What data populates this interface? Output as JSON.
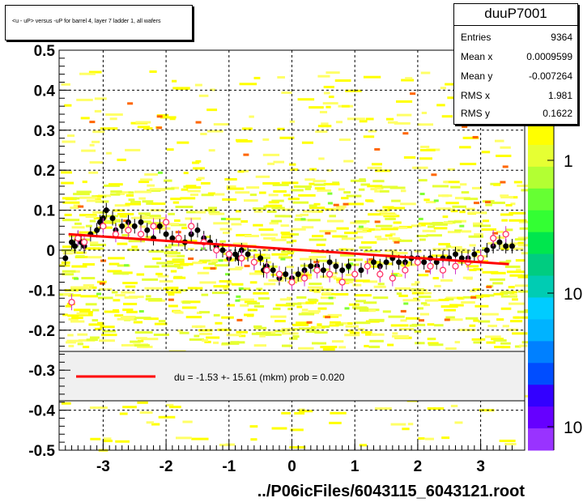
{
  "chart_data": {
    "type": "scatter",
    "title": "<u - uP>       versus  -uP for barrel 4, layer 7 ladder 1, all wafers",
    "xlabel": "../P06icFiles/6043115_6043121.root",
    "ylabel": "",
    "xlim": [
      -3.7,
      3.7
    ],
    "ylim": [
      -0.5,
      0.5
    ],
    "x_ticks": [
      -3,
      -2,
      -1,
      0,
      1,
      2,
      3
    ],
    "x_tick_labels": [
      "-3",
      "-2",
      "-1",
      "0",
      "1",
      "2",
      "3"
    ],
    "y_ticks": [
      -0.5,
      -0.4,
      -0.3,
      -0.2,
      -0.1,
      0,
      0.1,
      0.2,
      0.3,
      0.4,
      0.5
    ],
    "y_tick_labels": [
      "-0.5",
      "-0.4",
      "-0.3",
      "-0.2",
      "-0.1",
      "0",
      "0.1",
      "0.2",
      "0.3",
      "0.4",
      "0.5"
    ],
    "grid": true,
    "stats": {
      "name": "duuP7001",
      "rows": [
        {
          "label": "Entries",
          "value": "9364"
        },
        {
          "label": "Mean x",
          "value": "0.0009599"
        },
        {
          "label": "Mean y",
          "value": "-0.007264"
        },
        {
          "label": "RMS x",
          "value": "1.981"
        },
        {
          "label": "RMS y",
          "value": "0.1622"
        }
      ]
    },
    "legend": {
      "placement": "lower-center",
      "entry": "du =   -1.53 +- 15.61 (mkm) prob = 0.020",
      "line_color": "#ff0000"
    },
    "colorbar": {
      "labels": [
        "1",
        "10",
        "10"
      ],
      "colors": [
        "#ffff00",
        "#e6ff33",
        "#b3ff33",
        "#66ff33",
        "#33ff33",
        "#00e64d",
        "#00cc80",
        "#00ccb3",
        "#00ccff",
        "#00b3ff",
        "#0080ff",
        "#004dff",
        "#3300ff",
        "#6600ff",
        "#9933ff"
      ]
    },
    "series": [
      {
        "kind": "profile-black",
        "x": [
          -3.6,
          -3.5,
          -3.45,
          -3.4,
          -3.35,
          -3.3,
          -3.2,
          -3.1,
          -3.05,
          -3.0,
          -2.95,
          -2.85,
          -2.8,
          -2.7,
          -2.6,
          -2.5,
          -2.4,
          -2.3,
          -2.2,
          -2.1,
          -2.0,
          -1.9,
          -1.8,
          -1.7,
          -1.6,
          -1.5,
          -1.4,
          -1.3,
          -1.2,
          -1.1,
          -1.0,
          -0.9,
          -0.85,
          -0.8,
          -0.7,
          -0.6,
          -0.5,
          -0.45,
          -0.4,
          -0.3,
          -0.2,
          -0.1,
          0.0,
          0.1,
          0.2,
          0.3,
          0.4,
          0.5,
          0.6,
          0.7,
          0.8,
          0.9,
          1.0,
          1.1,
          1.2,
          1.3,
          1.4,
          1.5,
          1.6,
          1.7,
          1.8,
          1.9,
          2.0,
          2.1,
          2.2,
          2.3,
          2.4,
          2.5,
          2.6,
          2.7,
          2.8,
          2.9,
          3.0,
          3.1,
          3.2,
          3.3,
          3.4,
          3.5
        ],
        "y": [
          -0.02,
          0.02,
          0.01,
          0.03,
          0.02,
          0.01,
          0.04,
          0.05,
          0.07,
          0.08,
          0.1,
          0.08,
          0.05,
          0.06,
          0.07,
          0.06,
          0.07,
          0.05,
          0.03,
          0.06,
          0.04,
          0.03,
          0.03,
          0.02,
          0.04,
          0.05,
          0.03,
          0.02,
          0.01,
          0.0,
          -0.02,
          -0.01,
          -0.02,
          0.0,
          -0.01,
          -0.03,
          -0.02,
          -0.05,
          -0.04,
          -0.05,
          -0.07,
          -0.06,
          -0.07,
          -0.06,
          -0.05,
          -0.04,
          -0.04,
          -0.05,
          -0.03,
          -0.04,
          -0.05,
          -0.04,
          -0.06,
          -0.05,
          -0.04,
          -0.03,
          -0.04,
          -0.03,
          -0.02,
          -0.03,
          -0.03,
          -0.02,
          -0.02,
          -0.03,
          -0.02,
          -0.03,
          -0.02,
          -0.02,
          -0.01,
          -0.02,
          -0.02,
          -0.01,
          -0.02,
          0.0,
          0.01,
          0.02,
          0.01,
          0.01
        ]
      },
      {
        "kind": "profile-open",
        "x": [
          -3.5,
          -3.4,
          -3.3,
          -3.0,
          -2.8,
          -2.6,
          -2.4,
          -2.2,
          -2.0,
          -1.8,
          -1.6,
          -1.4,
          -1.2,
          -1.0,
          -0.8,
          -0.6,
          -0.4,
          -0.2,
          0.0,
          0.2,
          0.4,
          0.6,
          0.8,
          1.0,
          1.2,
          1.4,
          1.6,
          1.8,
          2.0,
          2.2,
          2.4,
          2.6,
          2.8,
          3.0,
          3.2,
          3.4
        ],
        "y": [
          -0.13,
          0.03,
          0.02,
          0.06,
          0.04,
          0.05,
          0.04,
          0.06,
          0.07,
          0.03,
          0.06,
          0.02,
          0.0,
          -0.01,
          -0.02,
          -0.03,
          -0.05,
          -0.06,
          -0.08,
          -0.07,
          -0.05,
          -0.06,
          -0.08,
          -0.06,
          -0.04,
          -0.06,
          -0.07,
          -0.05,
          -0.03,
          -0.04,
          -0.05,
          -0.04,
          -0.03,
          -0.02,
          0.03,
          0.04
        ]
      },
      {
        "kind": "fit",
        "x": [
          -3.55,
          3.45
        ],
        "y": [
          0.04,
          -0.035
        ]
      }
    ]
  }
}
